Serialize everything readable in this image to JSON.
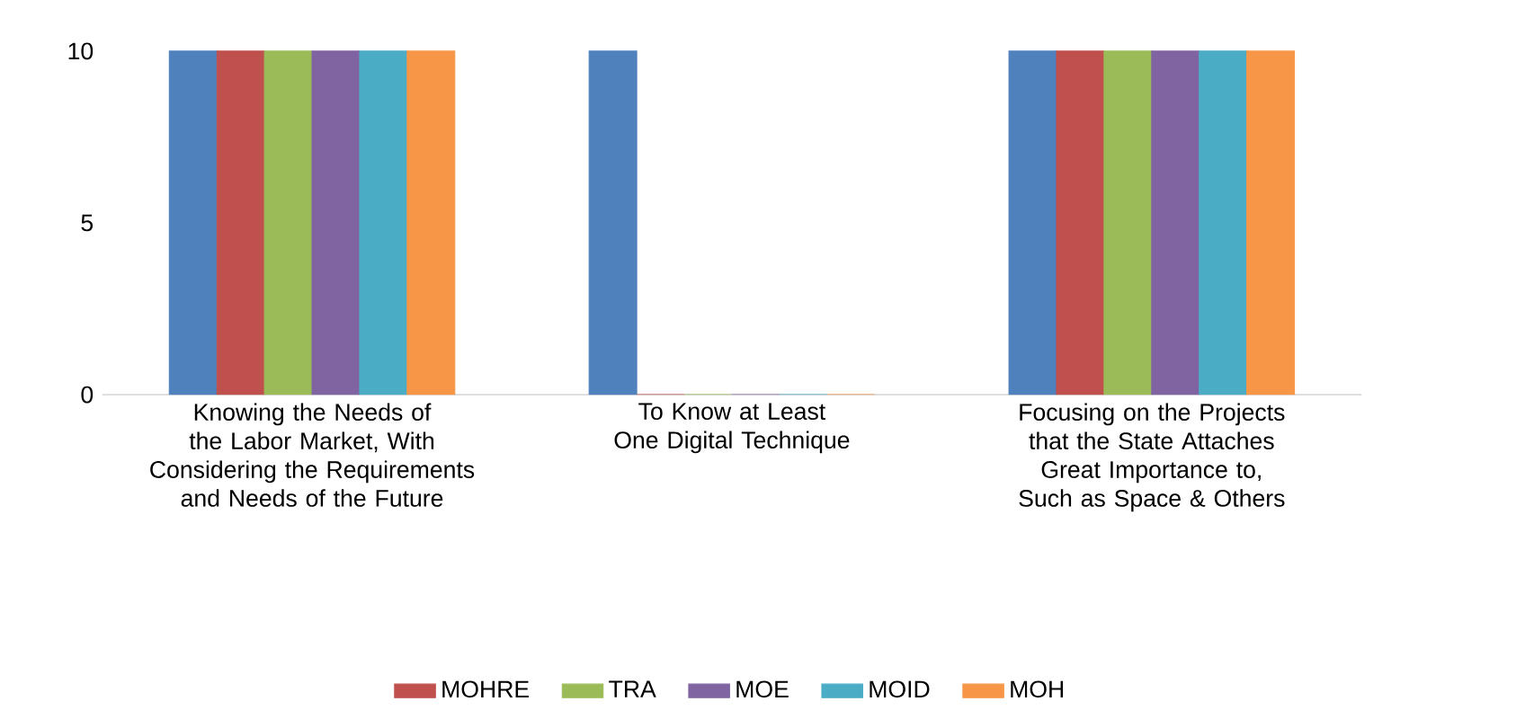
{
  "chart_data": {
    "type": "bar",
    "categories": [
      "Knowing the Needs of the Labor Market, With Considering the Requirements and Needs of the Future",
      "To Know at Least One Digital Technique",
      "Focusing on the Projects that the State Attaches Great Importance to, Such as Space & Others"
    ],
    "series": [
      {
        "color": "#4f81bd",
        "values": [
          10,
          10,
          10
        ]
      },
      {
        "name": "MOHRE",
        "color": "#c0504d",
        "values": [
          10,
          0,
          10
        ]
      },
      {
        "name": "TRA",
        "color": "#9bbb59",
        "values": [
          10,
          0,
          10
        ]
      },
      {
        "name": "MOE",
        "color": "#8064a2",
        "values": [
          10,
          0,
          10
        ]
      },
      {
        "name": "MOID",
        "color": "#4bacc6",
        "values": [
          10,
          0,
          10
        ]
      },
      {
        "name": "MOH",
        "color": "#f79646",
        "values": [
          10,
          0,
          10
        ]
      }
    ],
    "ylim": [
      0,
      10
    ],
    "yticks": [
      0,
      5,
      10
    ],
    "grid": false,
    "legend": "bottom"
  }
}
